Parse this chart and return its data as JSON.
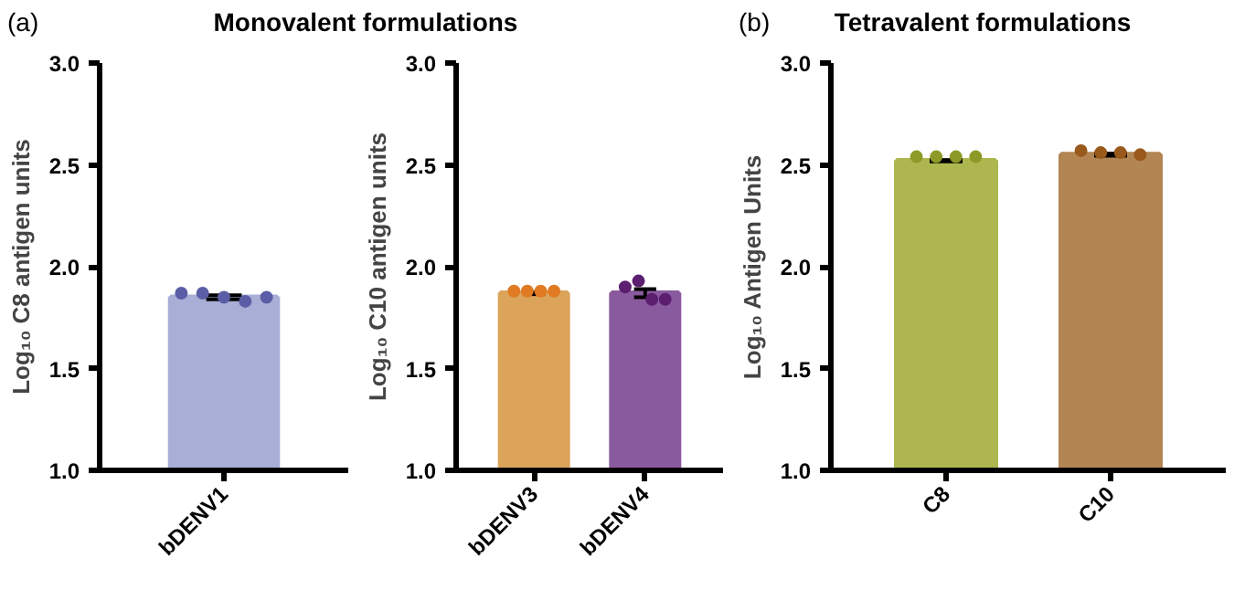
{
  "chart_data": [
    {
      "type": "bar",
      "title": "Monovalent formulations",
      "annotations": [
        "(a)"
      ],
      "ylabel": "Log₁₀ C8 antigen units",
      "categories": [
        "bDENV1"
      ],
      "ylim": [
        1,
        3
      ],
      "yticks": [
        {
          "value": 1,
          "label": "1.0"
        },
        {
          "value": 1.5,
          "label": "1.5"
        },
        {
          "value": 2,
          "label": "2.0"
        },
        {
          "value": 2.5,
          "label": "2.5"
        },
        {
          "value": 3,
          "label": "3.0"
        }
      ],
      "series": [
        {
          "type": "bar",
          "colors": [
            "#a9aed6"
          ],
          "values": [
            1.85
          ],
          "errors": [
            0.01
          ]
        },
        {
          "type": "scatter",
          "color": "#5b5ea6",
          "x": [
            "bDENV1",
            "bDENV1",
            "bDENV1",
            "bDENV1",
            "bDENV1"
          ],
          "values": [
            1.87,
            1.87,
            1.85,
            1.83,
            1.85
          ]
        }
      ]
    },
    {
      "type": "bar",
      "ylabel": "Log₁₀ C10 antigen units",
      "categories": [
        "bDENV3",
        "bDENV4"
      ],
      "ylim": [
        1,
        3
      ],
      "yticks": [
        {
          "value": 1,
          "label": "1.0"
        },
        {
          "value": 1.5,
          "label": "1.5"
        },
        {
          "value": 2,
          "label": "2.0"
        },
        {
          "value": 2.5,
          "label": "2.5"
        },
        {
          "value": 3,
          "label": "3.0"
        }
      ],
      "series": [
        {
          "type": "bar",
          "colors": [
            "#dba45a",
            "#8a5a9e"
          ],
          "values": [
            1.87,
            1.87
          ],
          "errors": [
            0.005,
            0.02
          ]
        },
        {
          "type": "scatter",
          "color": "#e07b24",
          "x": [
            "bDENV3",
            "bDENV3",
            "bDENV3",
            "bDENV3"
          ],
          "values": [
            1.88,
            1.88,
            1.88,
            1.88
          ]
        },
        {
          "type": "scatter",
          "color": "#5c1f70",
          "x": [
            "bDENV4",
            "bDENV4",
            "bDENV4",
            "bDENV4"
          ],
          "values": [
            1.9,
            1.93,
            1.84,
            1.84
          ]
        }
      ]
    },
    {
      "type": "bar",
      "title": "Tetravalent formulations",
      "annotations": [
        "(b)"
      ],
      "ylabel": "Log₁₀ Antigen Units",
      "categories": [
        "C8",
        "C10"
      ],
      "ylim": [
        1,
        3
      ],
      "yticks": [
        {
          "value": 1,
          "label": "1.0"
        },
        {
          "value": 1.5,
          "label": "1.5"
        },
        {
          "value": 2,
          "label": "2.0"
        },
        {
          "value": 2.5,
          "label": "2.5"
        },
        {
          "value": 3,
          "label": "3.0"
        }
      ],
      "series": [
        {
          "type": "bar",
          "colors": [
            "#aeb74f",
            "#b28552"
          ],
          "values": [
            2.52,
            2.55
          ],
          "errors": [
            0.003,
            0.005
          ]
        },
        {
          "type": "scatter",
          "color": "#8e9a28",
          "x": [
            "C8",
            "C8",
            "C8",
            "C8"
          ],
          "values": [
            2.54,
            2.54,
            2.54,
            2.54
          ]
        },
        {
          "type": "scatter",
          "color": "#9a5a1c",
          "x": [
            "C10",
            "C10",
            "C10",
            "C10"
          ],
          "values": [
            2.57,
            2.56,
            2.56,
            2.55
          ]
        }
      ]
    }
  ]
}
